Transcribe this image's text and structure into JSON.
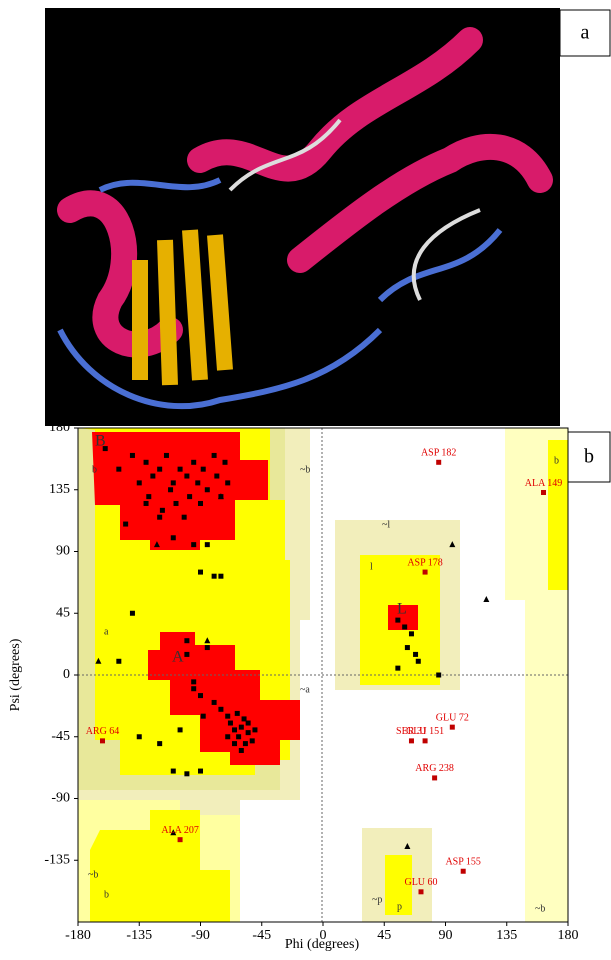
{
  "panel_labels": [
    "a",
    "b"
  ],
  "chart_data": {
    "type": "scatter",
    "xlabel": "Phi (degrees)",
    "ylabel": "Psi (degrees)",
    "xlim": [
      -180,
      180
    ],
    "ylim": [
      -180,
      180
    ],
    "xticks": [
      -180,
      -135,
      -90,
      -45,
      0,
      45,
      90,
      135,
      180
    ],
    "yticks": [
      -135,
      -90,
      -45,
      0,
      45,
      90,
      135,
      180
    ],
    "region_labels": [
      "B",
      "b",
      "a",
      "A",
      "~b",
      "~a",
      "~l",
      "l",
      "L",
      "~p",
      "p",
      "b",
      "~b",
      "b",
      "~b"
    ],
    "points": {
      "color": "#000000",
      "x": [
        -160,
        -150,
        -140,
        -135,
        -130,
        -128,
        -125,
        -120,
        -118,
        -115,
        -112,
        -110,
        -108,
        -105,
        -102,
        -100,
        -98,
        -95,
        -92,
        -90,
        -88,
        -85,
        -80,
        -78,
        -75,
        -72,
        -70,
        -120,
        -130,
        -145,
        -110,
        -95,
        -85,
        -90,
        -80,
        -75,
        -140,
        -100,
        -85,
        -150,
        -100,
        -95,
        -90,
        -75,
        -70,
        -68,
        -65,
        -63,
        -62,
        -60,
        -58,
        -57,
        -55,
        -55,
        -52,
        -50,
        -60,
        -65,
        -70,
        -80,
        -88,
        -95,
        -105,
        -110,
        -120,
        -135,
        -100,
        -90,
        55,
        60,
        65,
        62,
        68,
        70,
        55,
        85
      ],
      "y": [
        165,
        150,
        160,
        140,
        155,
        130,
        145,
        150,
        120,
        160,
        135,
        140,
        125,
        150,
        115,
        145,
        130,
        155,
        140,
        125,
        150,
        135,
        160,
        145,
        130,
        155,
        140,
        115,
        125,
        110,
        100,
        95,
        95,
        75,
        72,
        72,
        45,
        25,
        20,
        10,
        15,
        -5,
        -15,
        -25,
        -30,
        -35,
        -40,
        -28,
        -45,
        -38,
        -32,
        -50,
        -42,
        -35,
        -48,
        -40,
        -55,
        -50,
        -45,
        -20,
        -30,
        -10,
        -40,
        -70,
        -50,
        -45,
        -72,
        -70,
        40,
        35,
        30,
        20,
        15,
        10,
        5,
        0
      ]
    },
    "glycine": {
      "color": "#000000",
      "x": [
        -165,
        -122,
        -85,
        -110,
        -75,
        95,
        120,
        62
      ],
      "y": [
        10,
        95,
        25,
        -115,
        130,
        95,
        55,
        -125
      ]
    },
    "labeled_points": {
      "color": "#c00000",
      "labels": [
        "ASP 182",
        "ALA 149",
        "ASP 178",
        "GLU 72",
        "SER 31",
        "GLU 151",
        "ARG 238",
        "ARG 64",
        "ALA 207",
        "ASP 155",
        "GLU 60"
      ],
      "x": [
        85,
        162,
        75,
        95,
        65,
        75,
        82,
        -162,
        -105,
        103,
        72
      ],
      "y": [
        155,
        133,
        75,
        -38,
        -48,
        -48,
        -75,
        -48,
        -120,
        -143,
        -158
      ]
    }
  }
}
